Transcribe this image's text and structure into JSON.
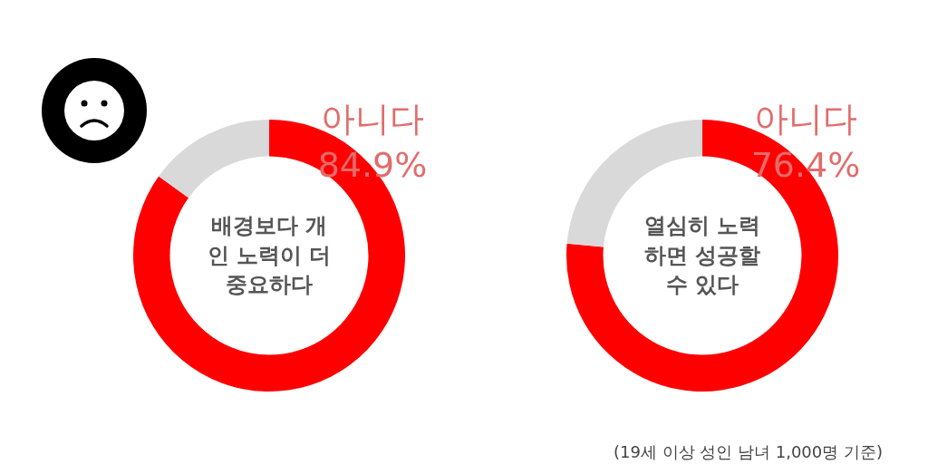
{
  "chart_data": [
    {
      "type": "donut",
      "title": "배경보다 개인 노력이 더 중요하다",
      "categories": [
        "아니다",
        null
      ],
      "values": [
        84.9,
        15.1
      ],
      "colors": [
        "#ff0000",
        "#d9d9d9"
      ],
      "value_labels": [
        "84.9%",
        null
      ],
      "legend": false
    },
    {
      "type": "donut",
      "title": "열심히 노력하면 성공할 수 있다",
      "categories": [
        "아니다",
        null
      ],
      "values": [
        76.4,
        23.6
      ],
      "colors": [
        "#ff0000",
        "#d9d9d9"
      ],
      "value_labels": [
        "76.4%",
        null
      ],
      "legend": false,
      "annotations": [
        "(19세 이상 성인 남녀 1,000명 기준)"
      ]
    }
  ]
}
